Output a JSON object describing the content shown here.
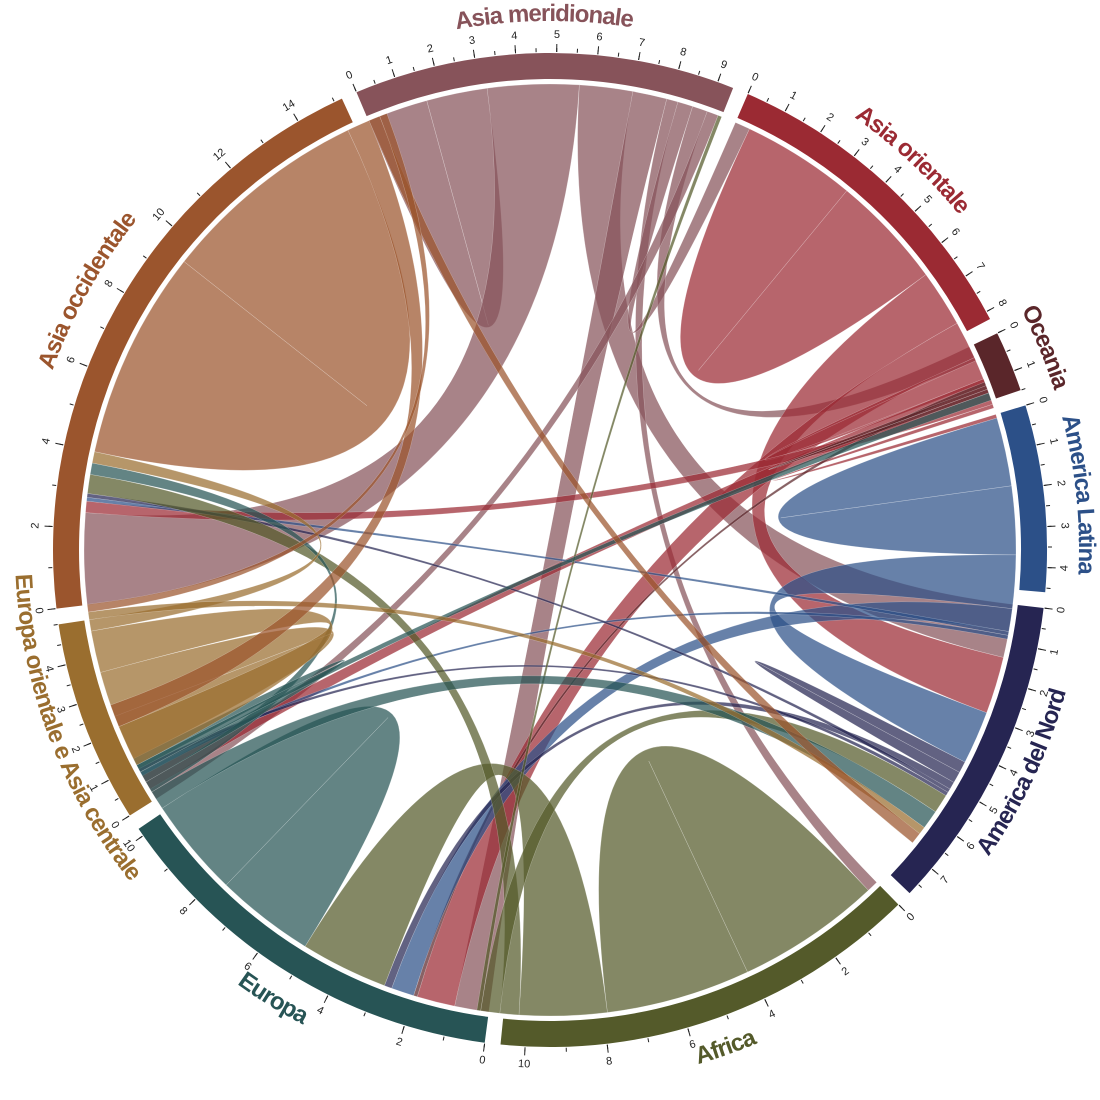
{
  "chart_data": {
    "type": "chord",
    "title": "",
    "regions": [
      {
        "name": "Asia meridionale",
        "color": "#87535A",
        "total": 9.4,
        "ticks": [
          0,
          1,
          2,
          3,
          4,
          5,
          6,
          7,
          8,
          9
        ]
      },
      {
        "name": "Asia orientale",
        "color": "#9B2A33",
        "total": 8.2,
        "ticks": [
          0,
          1,
          2,
          3,
          4,
          5,
          6,
          7,
          8
        ]
      },
      {
        "name": "Oceania",
        "color": "#5A262A",
        "total": 1.5,
        "ticks": [
          0,
          1
        ]
      },
      {
        "name": "America Latina",
        "color": "#2C5088",
        "total": 4.6,
        "ticks": [
          0,
          1,
          2,
          3,
          4
        ]
      },
      {
        "name": "America del Nord",
        "color": "#262552",
        "total": 7.8,
        "ticks": [
          0,
          1,
          2,
          3,
          4,
          5,
          6,
          7
        ]
      },
      {
        "name": "Africa",
        "color": "#545A2A",
        "total": 10.6,
        "ticks": [
          0,
          2,
          4,
          6,
          8,
          10
        ]
      },
      {
        "name": "Europa",
        "color": "#275455",
        "total": 10.2,
        "ticks": [
          0,
          2,
          4,
          6,
          8,
          10
        ]
      },
      {
        "name": "Europa orientale e Asia centrale",
        "color": "#9A6E2F",
        "total": 5.0,
        "ticks": [
          0,
          1,
          2,
          3,
          4
        ]
      },
      {
        "name": "Asia occidentale",
        "color": "#9B552D",
        "total": 15.2,
        "ticks": [
          0,
          2,
          4,
          6,
          8,
          10,
          12,
          14
        ]
      }
    ],
    "flows": [
      {
        "from": "Asia meridionale",
        "to": "Asia meridionale",
        "value": 1.6
      },
      {
        "from": "Asia meridionale",
        "to": "Asia occidentale",
        "value": 2.4
      },
      {
        "from": "Asia meridionale",
        "to": "America del Nord",
        "value": 1.4
      },
      {
        "from": "Asia meridionale",
        "to": "Europa",
        "value": 0.9
      },
      {
        "from": "Asia meridionale",
        "to": "Africa",
        "value": 0.3
      },
      {
        "from": "Asia meridionale",
        "to": "Asia orientale",
        "value": 0.4
      },
      {
        "from": "Asia meridionale",
        "to": "Oceania",
        "value": 0.4
      },
      {
        "from": "Asia meridionale",
        "to": "Europa orientale e Asia centrale",
        "value": 0.3
      },
      {
        "from": "Asia orientale",
        "to": "Asia orientale",
        "value": 3.0
      },
      {
        "from": "Asia orientale",
        "to": "America del Nord",
        "value": 1.5
      },
      {
        "from": "Asia orientale",
        "to": "Europa",
        "value": 1.0
      },
      {
        "from": "Asia orientale",
        "to": "Oceania",
        "value": 0.6
      },
      {
        "from": "Asia orientale",
        "to": "Europa orientale e Asia centrale",
        "value": 0.4
      },
      {
        "from": "Asia orientale",
        "to": "Asia occidentale",
        "value": 0.3
      },
      {
        "from": "Asia orientale",
        "to": "America Latina",
        "value": 0.1
      },
      {
        "from": "Oceania",
        "to": "Europa",
        "value": 0.1
      },
      {
        "from": "Oceania",
        "to": "Oceania",
        "value": 0.1
      },
      {
        "from": "America Latina",
        "to": "America Latina",
        "value": 1.8
      },
      {
        "from": "America Latina",
        "to": "America del Nord",
        "value": 1.4
      },
      {
        "from": "America Latina",
        "to": "Europa",
        "value": 0.6
      },
      {
        "from": "America Latina",
        "to": "Asia occidentale",
        "value": 0.1
      },
      {
        "from": "America Latina",
        "to": "Europa orientale e Asia centrale",
        "value": 0.1
      },
      {
        "from": "America del Nord",
        "to": "America del Nord",
        "value": 0.3
      },
      {
        "from": "America del Nord",
        "to": "Europa",
        "value": 0.2
      },
      {
        "from": "America del Nord",
        "to": "Asia occidentale",
        "value": 0.1
      },
      {
        "from": "America del Nord",
        "to": "Europa orientale e Asia centrale",
        "value": 0.1
      },
      {
        "from": "Africa",
        "to": "Africa",
        "value": 3.8
      },
      {
        "from": "Africa",
        "to": "Europa",
        "value": 2.3
      },
      {
        "from": "Africa",
        "to": "Asia occidentale",
        "value": 0.5
      },
      {
        "from": "Africa",
        "to": "America del Nord",
        "value": 0.5
      },
      {
        "from": "Africa",
        "to": "Asia meridionale",
        "value": 0.1
      },
      {
        "from": "Europa",
        "to": "Europa",
        "value": 2.6
      },
      {
        "from": "Europa",
        "to": "America del Nord",
        "value": 0.5
      },
      {
        "from": "Europa",
        "to": "Asia occidentale",
        "value": 0.3
      },
      {
        "from": "Europa",
        "to": "Europa orientale e Asia centrale",
        "value": 0.3
      },
      {
        "from": "Europa",
        "to": "Oceania",
        "value": 0.2
      },
      {
        "from": "Europa orientale e Asia centrale",
        "to": "Europa orientale e Asia centrale",
        "value": 1.2
      },
      {
        "from": "Europa orientale e Asia centrale",
        "to": "Europa",
        "value": 1.1
      },
      {
        "from": "Europa orientale e Asia centrale",
        "to": "Asia occidentale",
        "value": 0.3
      },
      {
        "from": "Europa orientale e Asia centrale",
        "to": "America del Nord",
        "value": 0.2
      },
      {
        "from": "Asia occidentale",
        "to": "Asia occidentale",
        "value": 5.5
      },
      {
        "from": "Asia occidentale",
        "to": "Europa",
        "value": 0.6
      },
      {
        "from": "Asia occidentale",
        "to": "America del Nord",
        "value": 0.3
      },
      {
        "from": "Asia occidentale",
        "to": "Europa orientale e Asia centrale",
        "value": 0.2
      }
    ]
  }
}
